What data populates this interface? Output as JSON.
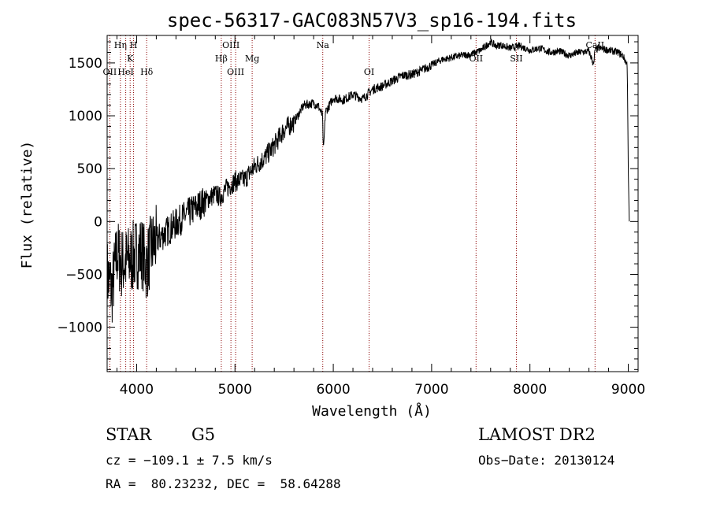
{
  "chart_data": {
    "type": "line",
    "title": "spec-56317-GAC083N57V3_sp16-194.fits",
    "xlabel": "Wavelength (Å)",
    "ylabel": "Flux (relative)",
    "xlim": [
      3700,
      9100
    ],
    "ylim": [
      -1420,
      1760
    ],
    "xticks": [
      4000,
      5000,
      6000,
      7000,
      8000,
      9000
    ],
    "yticks": [
      -1000,
      -500,
      0,
      500,
      1000,
      1500
    ],
    "grid": false,
    "series": [
      {
        "x": [
          3700,
          3750,
          3800,
          3850,
          3900,
          3950,
          4000,
          4050,
          4100,
          4150,
          4200,
          4300,
          4400,
          4500,
          4600,
          4700,
          4800,
          4850,
          4900,
          5000,
          5100,
          5200,
          5300,
          5400,
          5500,
          5600,
          5700,
          5800,
          5850,
          5890,
          5900,
          5920,
          5950,
          6000,
          6100,
          6200,
          6300,
          6400,
          6500,
          6600,
          6700,
          6800,
          6900,
          7000,
          7100,
          7200,
          7300,
          7400,
          7500,
          7600,
          7650,
          7700,
          7800,
          7900,
          8000,
          8100,
          8200,
          8300,
          8400,
          8500,
          8600,
          8650,
          8660,
          8700,
          8800,
          8900,
          8950,
          8990,
          9000,
          9010
        ],
        "values": [
          -500,
          -650,
          -300,
          -400,
          -380,
          -350,
          -300,
          -280,
          -420,
          -250,
          -180,
          -100,
          -20,
          60,
          130,
          200,
          260,
          230,
          300,
          380,
          400,
          520,
          600,
          720,
          870,
          940,
          1100,
          1120,
          1090,
          1000,
          650,
          1040,
          1080,
          1170,
          1150,
          1200,
          1160,
          1250,
          1280,
          1330,
          1380,
          1390,
          1430,
          1480,
          1530,
          1550,
          1570,
          1580,
          1620,
          1700,
          1660,
          1670,
          1640,
          1660,
          1620,
          1640,
          1600,
          1610,
          1570,
          1600,
          1610,
          1480,
          1620,
          1640,
          1620,
          1600,
          1560,
          1480,
          500,
          0
        ]
      }
    ]
  },
  "line_markers": [
    {
      "wl": 3727,
      "label": "OII",
      "row": 3
    },
    {
      "wl": 3835,
      "label": "Hη",
      "row": 1
    },
    {
      "wl": 3889,
      "label": "HeI",
      "row": 3
    },
    {
      "wl": 3934,
      "label": "K",
      "row": 2
    },
    {
      "wl": 3969,
      "label": "H",
      "row": 1
    },
    {
      "wl": 4102,
      "label": "Hδ",
      "row": 3
    },
    {
      "wl": 4861,
      "label": "Hβ",
      "row": 2
    },
    {
      "wl": 4959,
      "label": "OIII",
      "row": 1
    },
    {
      "wl": 5007,
      "label": "OIII",
      "row": 3
    },
    {
      "wl": 5175,
      "label": "Mg",
      "row": 2
    },
    {
      "wl": 5893,
      "label": "Na",
      "row": 1
    },
    {
      "wl": 6364,
      "label": "OI",
      "row": 3
    },
    {
      "wl": 7452,
      "label": "OII",
      "row": 2
    },
    {
      "wl": 7862,
      "label": "SII",
      "row": 2
    },
    {
      "wl": 8662,
      "label": "CaII",
      "row": 1
    }
  ],
  "footer": {
    "class_label": "STAR",
    "subclass": "G5",
    "survey": "LAMOST DR2",
    "cz": "cz = −109.1 ± 7.5 km/s",
    "obs_date": "Obs−Date: 20130124",
    "coords": "RA =  80.23232, DEC =  58.64288"
  }
}
